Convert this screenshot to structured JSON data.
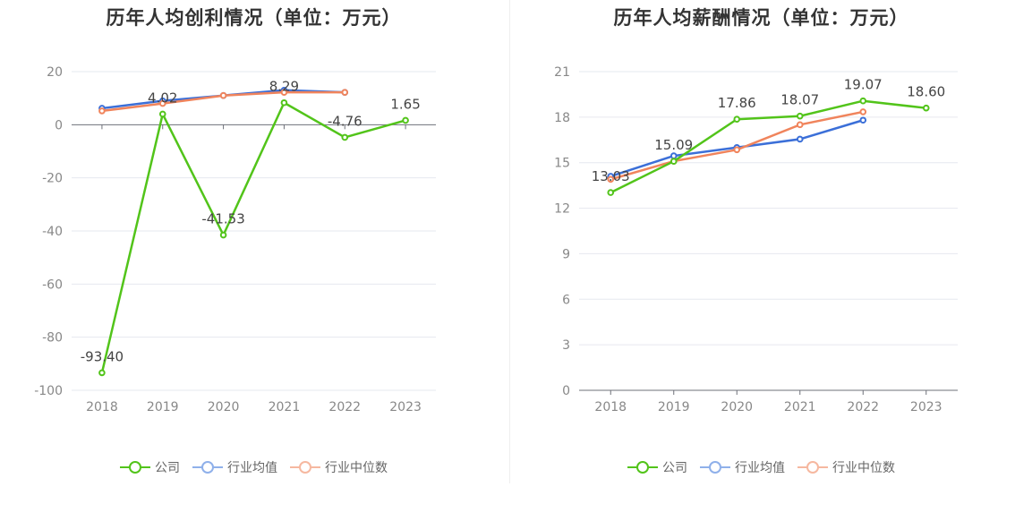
{
  "charts": [
    {
      "title": "历年人均创利情况（单位：万元）",
      "legend": [
        "公司",
        "行业均值",
        "行业中位数"
      ],
      "chart_data": {
        "type": "line",
        "title": "历年人均创利情况（单位：万元）",
        "xlabel": "",
        "ylabel": "",
        "categories": [
          "2018",
          "2019",
          "2020",
          "2021",
          "2022",
          "2023"
        ],
        "ylim": [
          -100,
          20
        ],
        "yticks": [
          20,
          0,
          -20,
          -40,
          -60,
          -80,
          -100
        ],
        "grid": true,
        "legend_position": "bottom",
        "series": [
          {
            "name": "公司",
            "color": "#52c41a",
            "values": [
              -93.4,
              4.02,
              -41.53,
              8.29,
              -4.76,
              1.65
            ],
            "labels": [
              "-93.40",
              "4.02",
              "-41.53",
              "8.29",
              "-4.76",
              "1.65"
            ]
          },
          {
            "name": "行业均值",
            "color": "#3b6fd8",
            "values": [
              6.2,
              9.0,
              11.0,
              13.0,
              12.2,
              null
            ]
          },
          {
            "name": "行业中位数",
            "color": "#f0845c",
            "values": [
              5.2,
              8.0,
              11.0,
              12.2,
              12.2,
              null
            ]
          }
        ]
      }
    },
    {
      "title": "历年人均薪酬情况（单位：万元）",
      "legend": [
        "公司",
        "行业均值",
        "行业中位数"
      ],
      "chart_data": {
        "type": "line",
        "title": "历年人均薪酬情况（单位：万元）",
        "xlabel": "",
        "ylabel": "",
        "categories": [
          "2018",
          "2019",
          "2020",
          "2021",
          "2022",
          "2023"
        ],
        "ylim": [
          0,
          21
        ],
        "yticks": [
          21,
          18,
          15,
          12,
          9,
          6,
          3,
          0
        ],
        "grid": true,
        "legend_position": "bottom",
        "series": [
          {
            "name": "公司",
            "color": "#52c41a",
            "values": [
              13.03,
              15.09,
              17.86,
              18.07,
              19.07,
              18.6
            ],
            "labels": [
              "13.03",
              "15.09",
              "17.86",
              "18.07",
              "19.07",
              "18.60"
            ]
          },
          {
            "name": "行业均值",
            "color": "#3b6fd8",
            "values": [
              14.1,
              15.45,
              16.0,
              16.55,
              17.8,
              null
            ]
          },
          {
            "name": "行业中位数",
            "color": "#f0845c",
            "values": [
              13.9,
              15.1,
              15.85,
              17.5,
              18.35,
              null
            ]
          }
        ]
      }
    }
  ]
}
